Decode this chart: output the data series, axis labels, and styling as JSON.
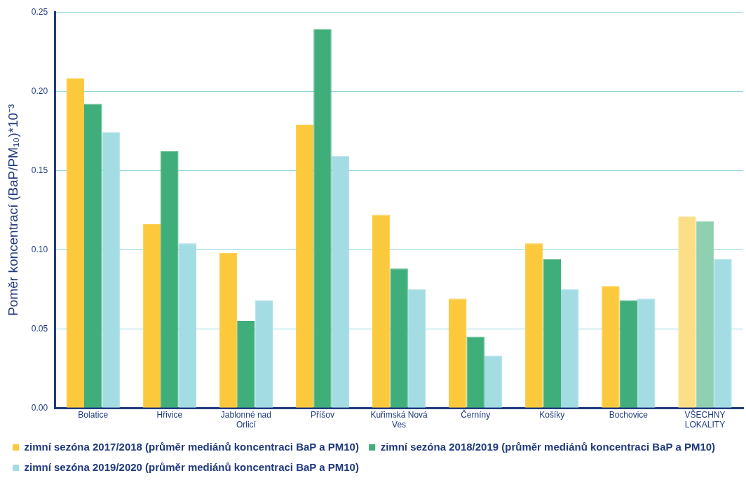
{
  "chart_data": {
    "type": "bar",
    "ylabel": "Poměr koncentrací (BaP/PM₁₀)*10⁻³",
    "categories": [
      "Bolatice",
      "Hřivice",
      "Jablonné nad Orlicí",
      "Příšov",
      "Kuřimská Nová Ves",
      "Černíny",
      "Košíky",
      "Bochovice",
      "VŠECHNY LOKALITY"
    ],
    "series": [
      {
        "name": "zimní sezóna 2017/2018 (průměr mediánů koncentraci BaP a PM10)",
        "color": "#fdc93c",
        "colors": [
          "#fdc93c",
          "#fdc93c",
          "#fdc93c",
          "#fdc93c",
          "#fdc93c",
          "#fdc93c",
          "#fdc93c",
          "#fdc93c",
          "#fcde87"
        ],
        "values": [
          0.208,
          0.116,
          0.098,
          0.179,
          0.122,
          0.069,
          0.104,
          0.077,
          0.121
        ]
      },
      {
        "name": "zimní sezóna 2018/2019 (průměr mediánů koncentraci BaP a PM10)",
        "color": "#3fae7a",
        "colors": [
          "#3fae7a",
          "#3fae7a",
          "#3fae7a",
          "#3fae7a",
          "#3fae7a",
          "#3fae7a",
          "#3fae7a",
          "#3fae7a",
          "#8fd0b0"
        ],
        "values": [
          0.192,
          0.162,
          0.055,
          0.239,
          0.088,
          0.045,
          0.094,
          0.068,
          0.118
        ]
      },
      {
        "name": "zimní sezóna 2019/2020 (průměr mediánů koncentraci BaP a PM10)",
        "color": "#a4dce4",
        "values": [
          0.174,
          0.104,
          0.068,
          0.159,
          0.075,
          0.033,
          0.075,
          0.069,
          0.094
        ]
      }
    ],
    "ylim": [
      0,
      0.25
    ],
    "yticks": [
      {
        "value": 0,
        "label": "0.00"
      },
      {
        "value": 0.05,
        "label": "0.05"
      },
      {
        "value": 0.1,
        "label": "0.10"
      },
      {
        "value": 0.15,
        "label": "0.15"
      },
      {
        "value": 0.2,
        "label": "0.20"
      },
      {
        "value": 0.25,
        "label": "0.25"
      }
    ],
    "grid": "y",
    "legend": "bottom"
  }
}
